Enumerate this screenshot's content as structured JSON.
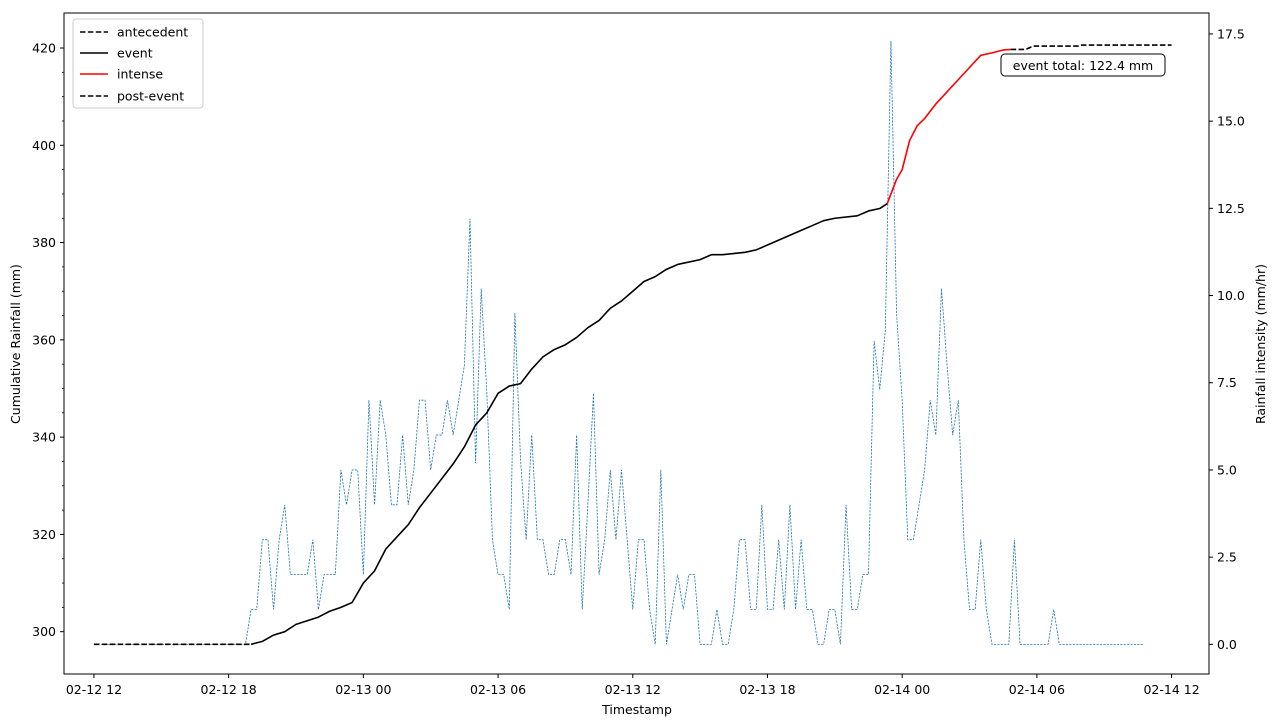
{
  "chart_data": {
    "type": "line",
    "xlabel": "Timestamp",
    "ylabel": "Cumulative Rainfall (mm)",
    "y2label": "Rainfall intensity (mm/hr)",
    "y2label_color": "#0000ff",
    "x_range": [
      "02-12 10:40",
      "02-14 13:40"
    ],
    "ylim": [
      291.3,
      427.2
    ],
    "y2lim": [
      -0.85,
      18.1
    ],
    "x_ticks": [
      "02-12 12",
      "02-12 18",
      "02-13 00",
      "02-13 06",
      "02-13 12",
      "02-13 18",
      "02-14 00",
      "02-14 06",
      "02-14 12"
    ],
    "y_ticks": [
      300,
      320,
      340,
      360,
      380,
      400,
      420
    ],
    "y2_ticks": [
      "0.0",
      "2.5",
      "5.0",
      "7.5",
      "10.0",
      "12.5",
      "15.0",
      "17.5"
    ],
    "grid": false,
    "legend_position": "top-left",
    "annotation": "event total: 122.4 mm",
    "series": [
      {
        "name": "antecedent",
        "axis": "left",
        "color": "#000000",
        "style": "dashed",
        "points": [
          [
            "02-12 12:00",
            297.4
          ],
          [
            "02-12 19:00",
            297.4
          ]
        ]
      },
      {
        "name": "event",
        "axis": "left",
        "color": "#000000",
        "style": "solid",
        "points": [
          [
            "02-12 19:00",
            297.4
          ],
          [
            "02-12 19:30",
            298.0
          ],
          [
            "02-12 20:00",
            299.3
          ],
          [
            "02-12 20:30",
            300.0
          ],
          [
            "02-12 21:00",
            301.5
          ],
          [
            "02-12 22:00",
            303.0
          ],
          [
            "02-12 22:30",
            304.2
          ],
          [
            "02-12 23:00",
            305.0
          ],
          [
            "02-12 23:30",
            306.0
          ],
          [
            "02-13 00:00",
            310.0
          ],
          [
            "02-13 00:30",
            312.5
          ],
          [
            "02-13 01:00",
            317.0
          ],
          [
            "02-13 01:30",
            319.5
          ],
          [
            "02-13 02:00",
            322.0
          ],
          [
            "02-13 02:30",
            325.5
          ],
          [
            "02-13 03:00",
            328.5
          ],
          [
            "02-13 03:30",
            331.5
          ],
          [
            "02-13 04:00",
            334.5
          ],
          [
            "02-13 04:30",
            338.0
          ],
          [
            "02-13 05:00",
            342.5
          ],
          [
            "02-13 05:30",
            345.0
          ],
          [
            "02-13 06:00",
            349.0
          ],
          [
            "02-13 06:30",
            350.5
          ],
          [
            "02-13 07:00",
            351.0
          ],
          [
            "02-13 07:30",
            354.0
          ],
          [
            "02-13 08:00",
            356.5
          ],
          [
            "02-13 08:30",
            358.0
          ],
          [
            "02-13 09:00",
            359.0
          ],
          [
            "02-13 09:30",
            360.5
          ],
          [
            "02-13 10:00",
            362.5
          ],
          [
            "02-13 10:30",
            364.0
          ],
          [
            "02-13 11:00",
            366.5
          ],
          [
            "02-13 11:30",
            368.0
          ],
          [
            "02-13 12:00",
            370.0
          ],
          [
            "02-13 12:30",
            372.0
          ],
          [
            "02-13 13:00",
            373.0
          ],
          [
            "02-13 13:30",
            374.5
          ],
          [
            "02-13 14:00",
            375.5
          ],
          [
            "02-13 15:00",
            376.5
          ],
          [
            "02-13 15:30",
            377.5
          ],
          [
            "02-13 16:00",
            377.5
          ],
          [
            "02-13 17:00",
            378.0
          ],
          [
            "02-13 17:30",
            378.5
          ],
          [
            "02-13 18:00",
            379.5
          ],
          [
            "02-13 18:30",
            380.5
          ],
          [
            "02-13 19:00",
            381.5
          ],
          [
            "02-13 19:30",
            382.5
          ],
          [
            "02-13 20:00",
            383.5
          ],
          [
            "02-13 20:30",
            384.5
          ],
          [
            "02-13 21:00",
            385.0
          ],
          [
            "02-13 22:00",
            385.5
          ],
          [
            "02-13 22:30",
            386.5
          ],
          [
            "02-13 23:00",
            387.0
          ],
          [
            "02-13 23:20",
            388.0
          ]
        ]
      },
      {
        "name": "intense",
        "axis": "left",
        "color": "#ff0000",
        "style": "solid",
        "points": [
          [
            "02-13 23:20",
            388.0
          ],
          [
            "02-13 23:30",
            390.0
          ],
          [
            "02-13 23:45",
            393.0
          ],
          [
            "02-14 00:00",
            395.0
          ],
          [
            "02-14 00:20",
            401.0
          ],
          [
            "02-14 00:40",
            404.0
          ],
          [
            "02-14 01:00",
            405.5
          ],
          [
            "02-14 01:30",
            408.5
          ],
          [
            "02-14 02:00",
            411.0
          ],
          [
            "02-14 02:30",
            413.5
          ],
          [
            "02-14 03:00",
            416.0
          ],
          [
            "02-14 03:30",
            418.5
          ],
          [
            "02-14 04:00",
            419.0
          ],
          [
            "02-14 04:30",
            419.6
          ],
          [
            "02-14 04:50",
            419.7
          ]
        ]
      },
      {
        "name": "post-event",
        "axis": "left",
        "color": "#000000",
        "style": "dashed",
        "points": [
          [
            "02-14 04:50",
            419.7
          ],
          [
            "02-14 05:30",
            419.7
          ],
          [
            "02-14 05:50",
            420.4
          ],
          [
            "02-14 07:50",
            420.4
          ],
          [
            "02-14 08:00",
            420.6
          ],
          [
            "02-14 12:00",
            420.6
          ]
        ]
      },
      {
        "axis": "right",
        "color": "#1f77b4",
        "style": "dashed-thin",
        "x_start": "02-12 12:00",
        "step_minutes": 15,
        "values": [
          0,
          0,
          0,
          0,
          0,
          0,
          0,
          0,
          0,
          0,
          0,
          0,
          0,
          0,
          0,
          0,
          0,
          0,
          0,
          0,
          0,
          0,
          0,
          0,
          0,
          0,
          0,
          0,
          1,
          1,
          3,
          3,
          1,
          3,
          4,
          2,
          2,
          2,
          2,
          3,
          1,
          2,
          2,
          2,
          5,
          4,
          5,
          5,
          2,
          7,
          4,
          7,
          6,
          4,
          4,
          6,
          4,
          5,
          7,
          7,
          5,
          6,
          6,
          7,
          6,
          7,
          8,
          12.2,
          5.2,
          10.2,
          7.2,
          3,
          2,
          2,
          1,
          9.5,
          5.3,
          3,
          6,
          3,
          3,
          2,
          2,
          3,
          3,
          2,
          6,
          1,
          4,
          7.2,
          2,
          3,
          5,
          3,
          5,
          3,
          1,
          3,
          3,
          1,
          0,
          5,
          0,
          1,
          2,
          1,
          2,
          2,
          0,
          0,
          0,
          1,
          0,
          0,
          1,
          3,
          3,
          1,
          1,
          4,
          1,
          1,
          3,
          1,
          4,
          1,
          3,
          1,
          1,
          0,
          0,
          1,
          1,
          0,
          4,
          1,
          1,
          2,
          2,
          8.7,
          7.3,
          9,
          17.3,
          9.5,
          7,
          3,
          3,
          4,
          5,
          7,
          6,
          10.2,
          8,
          6,
          7,
          3,
          1,
          1,
          3,
          1,
          0,
          0,
          0,
          0,
          3,
          0,
          0,
          0,
          0,
          0,
          0,
          1,
          0,
          0,
          0,
          0,
          0,
          0,
          0,
          0,
          0,
          0,
          0,
          0,
          0,
          0,
          0,
          0
        ]
      }
    ]
  }
}
